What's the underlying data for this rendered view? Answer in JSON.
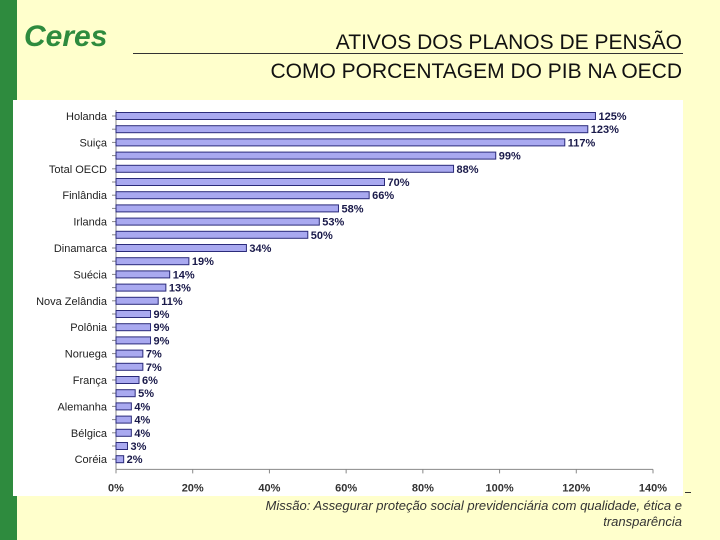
{
  "header": {
    "logo_text": "Ceres",
    "title_line1": "ATIVOS DOS PLANOS DE PENSÃO",
    "title_line2": "COMO PORCENTAGEM DO PIB NA OECD"
  },
  "footer": {
    "mission": "Missão: Assegurar proteção social previdenciária com qualidade, ética e transparência"
  },
  "colors": {
    "bar_fill": "#a9a9f0",
    "bar_stroke": "#2b2b7a",
    "sidebar": "#2e8b3e"
  },
  "chart_data": {
    "type": "bar",
    "orientation": "horizontal",
    "categories": [
      "Holanda",
      "",
      "Suiça",
      "",
      "Total OECD",
      "",
      "Finlândia",
      "",
      "Irlanda",
      "",
      "Dinamarca",
      "",
      "Suécia",
      "",
      "Nova Zelândia",
      "",
      "Polônia",
      "",
      "Noruega",
      "",
      "França",
      "",
      "Alemanha",
      "",
      "Bélgica",
      "",
      "Coréia"
    ],
    "values": [
      125,
      123,
      117,
      99,
      88,
      70,
      66,
      58,
      53,
      50,
      34,
      19,
      14,
      13,
      11,
      9,
      9,
      9,
      7,
      7,
      6,
      5,
      4,
      4,
      4,
      3,
      2
    ],
    "value_labels": [
      "125%",
      "123%",
      "117%",
      "99%",
      "88%",
      "70%",
      "66%",
      "58%",
      "53%",
      "50%",
      "34%",
      "19%",
      "14%",
      "13%",
      "11%",
      "9%",
      "9%",
      "9%",
      "7%",
      "7%",
      "6%",
      "5%",
      "4%",
      "4%",
      "4%",
      "3%",
      "2%"
    ],
    "xlim": [
      0,
      140
    ],
    "x_ticks": [
      "0%",
      "20%",
      "40%",
      "60%",
      "80%",
      "100%",
      "120%",
      "140%"
    ],
    "grid": false,
    "legend": "none"
  }
}
